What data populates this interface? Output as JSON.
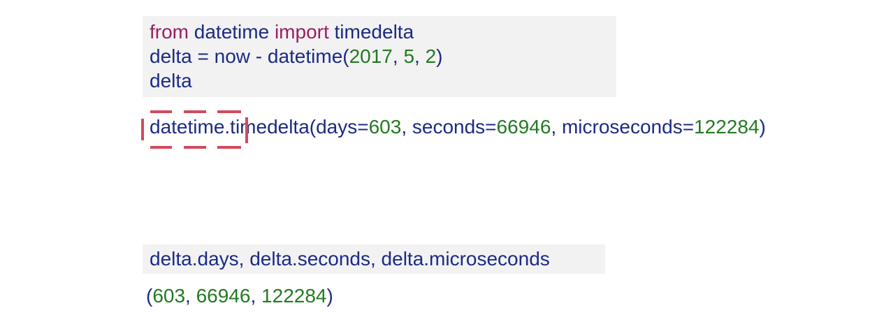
{
  "cell1": {
    "line1": {
      "from": "from",
      "module": " datetime ",
      "import": "import",
      "name": " timedelta"
    },
    "line2": {
      "lhs": "delta = now - datetime(",
      "year": "2017",
      "sep1": ", ",
      "month": "5",
      "sep2": ", ",
      "day": "2",
      "close": ")"
    },
    "line3": {
      "text": "delta"
    }
  },
  "output1": {
    "prefix": "datetime.timedelta(days=",
    "days": "603",
    "s1": ", seconds=",
    "seconds": "66946",
    "s2": ", microseconds=",
    "micro": "122284",
    "close": ")"
  },
  "annotation": {
    "color": "#d24a5c"
  },
  "cell2": {
    "text": "delta.days, delta.seconds, delta.microseconds"
  },
  "output2": {
    "open": "(",
    "days": "603",
    "s1": ", ",
    "seconds": "66946",
    "s2": ", ",
    "micro": "122284",
    "close": ")"
  },
  "colors": {
    "keyword": "#9a1f62",
    "name": "#1c2a86",
    "number": "#237a23",
    "cell_bg": "#f2f2f2"
  }
}
